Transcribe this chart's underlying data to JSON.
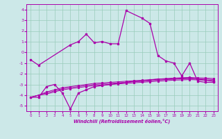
{
  "background_color": "#cce8e8",
  "grid_color": "#99ccbb",
  "line_color": "#aa00aa",
  "xlim": [
    -0.5,
    23.5
  ],
  "ylim": [
    -5.5,
    4.5
  ],
  "xticks": [
    0,
    1,
    2,
    3,
    4,
    5,
    6,
    7,
    8,
    9,
    10,
    11,
    12,
    13,
    14,
    15,
    16,
    17,
    18,
    19,
    20,
    21,
    22,
    23
  ],
  "yticks": [
    -5,
    -4,
    -3,
    -2,
    -1,
    0,
    1,
    2,
    3,
    4
  ],
  "xlabel": "Windchill (Refroidissement éolien,°C)",
  "main_x": [
    0,
    1,
    5,
    6,
    7,
    8,
    9,
    10,
    11,
    12,
    14,
    15,
    16,
    17,
    18,
    19,
    20,
    21,
    22,
    23
  ],
  "main_y": [
    -0.7,
    -1.2,
    0.7,
    1.0,
    1.7,
    0.9,
    1.0,
    0.8,
    0.8,
    3.9,
    3.2,
    2.7,
    -0.3,
    -0.8,
    -1.0,
    -2.2,
    -1.0,
    -2.7,
    -2.8,
    -2.8
  ],
  "bot_x": [
    0,
    1,
    2,
    3,
    4,
    5,
    6,
    7,
    8,
    9,
    10,
    11,
    12,
    13,
    14,
    15,
    16,
    17,
    18,
    19,
    20,
    21,
    22,
    23
  ],
  "bot_y": [
    -4.2,
    -4.2,
    -3.2,
    -3.0,
    -3.8,
    -5.3,
    -3.8,
    -3.5,
    -3.2,
    -3.1,
    -3.0,
    -2.9,
    -2.8,
    -2.7,
    -2.7,
    -2.6,
    -2.5,
    -2.5,
    -2.5,
    -2.4,
    -2.4,
    -2.5,
    -2.6,
    -2.7
  ],
  "lin1_x": [
    0,
    1,
    2,
    3,
    4,
    5,
    6,
    7,
    8,
    9,
    10,
    11,
    12,
    13,
    14,
    15,
    16,
    17,
    18,
    19,
    20,
    21,
    22,
    23
  ],
  "lin1_y": [
    -4.2,
    -4.0,
    -3.7,
    -3.5,
    -3.3,
    -3.2,
    -3.1,
    -3.0,
    -2.9,
    -2.85,
    -2.8,
    -2.75,
    -2.7,
    -2.65,
    -2.6,
    -2.55,
    -2.5,
    -2.45,
    -2.4,
    -2.38,
    -2.35,
    -2.38,
    -2.4,
    -2.45
  ],
  "lin2_x": [
    0,
    1,
    2,
    3,
    4,
    5,
    6,
    7,
    8,
    9,
    10,
    11,
    12,
    13,
    14,
    15,
    16,
    17,
    18,
    19,
    20,
    21,
    22,
    23
  ],
  "lin2_y": [
    -4.2,
    -4.0,
    -3.8,
    -3.6,
    -3.4,
    -3.3,
    -3.2,
    -3.1,
    -3.0,
    -2.95,
    -2.9,
    -2.85,
    -2.8,
    -2.75,
    -2.7,
    -2.65,
    -2.6,
    -2.55,
    -2.5,
    -2.48,
    -2.45,
    -2.48,
    -2.5,
    -2.55
  ],
  "lin3_x": [
    0,
    1,
    2,
    3,
    4,
    5,
    6,
    7,
    8,
    9,
    10,
    11,
    12,
    13,
    14,
    15,
    16,
    17,
    18,
    19,
    20,
    21,
    22,
    23
  ],
  "lin3_y": [
    -4.2,
    -4.0,
    -3.9,
    -3.7,
    -3.5,
    -3.4,
    -3.3,
    -3.2,
    -3.1,
    -3.05,
    -3.0,
    -2.95,
    -2.9,
    -2.85,
    -2.8,
    -2.75,
    -2.7,
    -2.65,
    -2.6,
    -2.58,
    -2.55,
    -2.58,
    -2.6,
    -2.65
  ]
}
